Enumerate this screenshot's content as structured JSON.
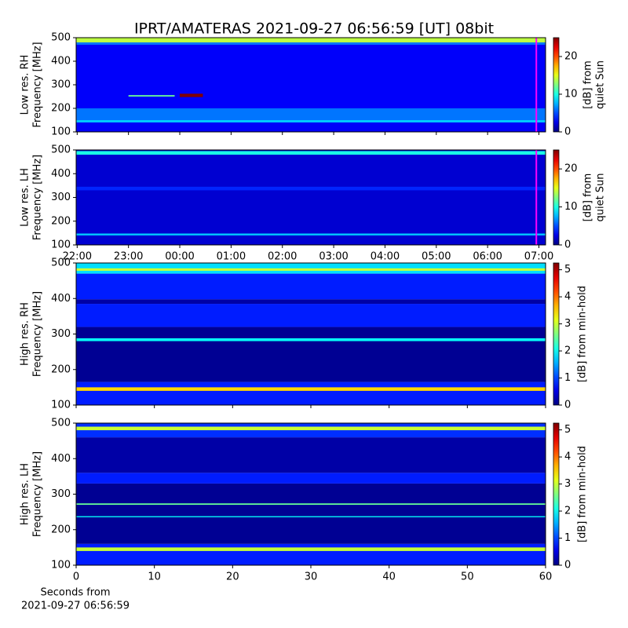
{
  "title": "IPRT/AMATERAS 2021-09-27 06:56:59 [UT]   08bit",
  "chart_data": [
    {
      "type": "spectrogram",
      "ylabel": [
        "Low res. RH",
        "Frequency [MHz]"
      ],
      "ylim": [
        100,
        500
      ],
      "yticks": [
        100,
        200,
        300,
        400,
        500
      ],
      "xlim": [
        21.98,
        31.13
      ],
      "xticks": [
        22,
        23,
        24,
        25,
        26,
        27,
        28,
        29,
        30,
        31
      ],
      "xtick_labels": false,
      "colorbar_label": [
        "[dB] from",
        "quiet Sun"
      ],
      "clim": [
        0,
        25
      ],
      "cticks": [
        0,
        10,
        20
      ],
      "bands": [
        {
          "y": [
            100,
            500
          ],
          "value": 3
        },
        {
          "y": [
            150,
            200
          ],
          "value": 6
        },
        {
          "y": [
            140,
            150
          ],
          "value": 8
        },
        {
          "y": [
            470,
            480
          ],
          "value": 6
        },
        {
          "y": [
            480,
            500
          ],
          "value": 14
        }
      ],
      "patches": [
        {
          "x": [
            23.0,
            23.9
          ],
          "y": [
            250,
            256
          ],
          "value": 12
        },
        {
          "x": [
            24.0,
            24.45
          ],
          "y": [
            248,
            262
          ],
          "value": 25
        }
      ],
      "marker": {
        "x": 30.95,
        "color": "#ff00ff"
      }
    },
    {
      "type": "spectrogram",
      "ylabel": [
        "Low res. LH",
        "Frequency [MHz]"
      ],
      "ylim": [
        100,
        500
      ],
      "yticks": [
        100,
        200,
        300,
        400,
        500
      ],
      "xlim": [
        21.98,
        31.13
      ],
      "xticks": [
        {
          "value": 22,
          "label": "22:00"
        },
        {
          "value": 23,
          "label": "23:00"
        },
        {
          "value": 24,
          "label": "00:00"
        },
        {
          "value": 25,
          "label": "01:00"
        },
        {
          "value": 26,
          "label": "02:00"
        },
        {
          "value": 27,
          "label": "03:00"
        },
        {
          "value": 28,
          "label": "04:00"
        },
        {
          "value": 29,
          "label": "05:00"
        },
        {
          "value": 30,
          "label": "06:00"
        },
        {
          "value": 31,
          "label": "07:00"
        }
      ],
      "xtick_labels": true,
      "colorbar_label": [
        "[dB] from",
        "quiet Sun"
      ],
      "clim": [
        0,
        25
      ],
      "cticks": [
        0,
        10,
        20
      ],
      "bands": [
        {
          "y": [
            100,
            500
          ],
          "value": 2
        },
        {
          "y": [
            330,
            345
          ],
          "value": 4
        },
        {
          "y": [
            140,
            148
          ],
          "value": 8
        },
        {
          "y": [
            480,
            495
          ],
          "value": 10
        }
      ],
      "patches": [],
      "marker": {
        "x": 30.95,
        "color": "#ff00ff"
      }
    },
    {
      "type": "spectrogram",
      "ylabel": [
        "High res. RH",
        "Frequency [MHz]"
      ],
      "ylim": [
        100,
        500
      ],
      "yticks": [
        100,
        200,
        300,
        400,
        500
      ],
      "xlim": [
        0,
        60
      ],
      "xticks": [
        0,
        10,
        20,
        30,
        40,
        50,
        60
      ],
      "xtick_labels": false,
      "colorbar_label": [
        "[dB] from min-hold"
      ],
      "clim": [
        0,
        5.25
      ],
      "cticks": [
        0,
        1,
        2,
        3,
        4,
        5
      ],
      "bands": [
        {
          "y": [
            100,
            165
          ],
          "value": 0.8
        },
        {
          "y": [
            140,
            150
          ],
          "value": 3.5
        },
        {
          "y": [
            165,
            320
          ],
          "value": 0.1
        },
        {
          "y": [
            280,
            288
          ],
          "value": 2
        },
        {
          "y": [
            320,
            385
          ],
          "value": 0.8
        },
        {
          "y": [
            385,
            398
          ],
          "value": 0.2
        },
        {
          "y": [
            398,
            470
          ],
          "value": 0.8
        },
        {
          "y": [
            470,
            500
          ],
          "value": 1.8
        },
        {
          "y": [
            478,
            485
          ],
          "value": 3
        }
      ],
      "patches": []
    },
    {
      "type": "spectrogram",
      "ylabel": [
        "High res. LH",
        "Frequency [MHz]"
      ],
      "ylim": [
        100,
        500
      ],
      "yticks": [
        100,
        200,
        300,
        400,
        500
      ],
      "xlim": [
        0,
        60
      ],
      "xticks": [
        0,
        10,
        20,
        30,
        40,
        50,
        60
      ],
      "xtick_labels": true,
      "xlabel": [
        "Seconds from",
        "2021-09-27 06:56:59"
      ],
      "colorbar_label": [
        "[dB] from min-hold"
      ],
      "clim": [
        0,
        5.25
      ],
      "cticks": [
        0,
        1,
        2,
        3,
        4,
        5
      ],
      "bands": [
        {
          "y": [
            100,
            160
          ],
          "value": 0.8
        },
        {
          "y": [
            140,
            150
          ],
          "value": 3
        },
        {
          "y": [
            160,
            330
          ],
          "value": 0.1
        },
        {
          "y": [
            235,
            238
          ],
          "value": 2
        },
        {
          "y": [
            270,
            274
          ],
          "value": 2.5
        },
        {
          "y": [
            330,
            360
          ],
          "value": 0.8
        },
        {
          "y": [
            360,
            460
          ],
          "value": 0.2
        },
        {
          "y": [
            460,
            500
          ],
          "value": 0.9
        },
        {
          "y": [
            480,
            490
          ],
          "value": 3
        }
      ],
      "patches": []
    }
  ]
}
